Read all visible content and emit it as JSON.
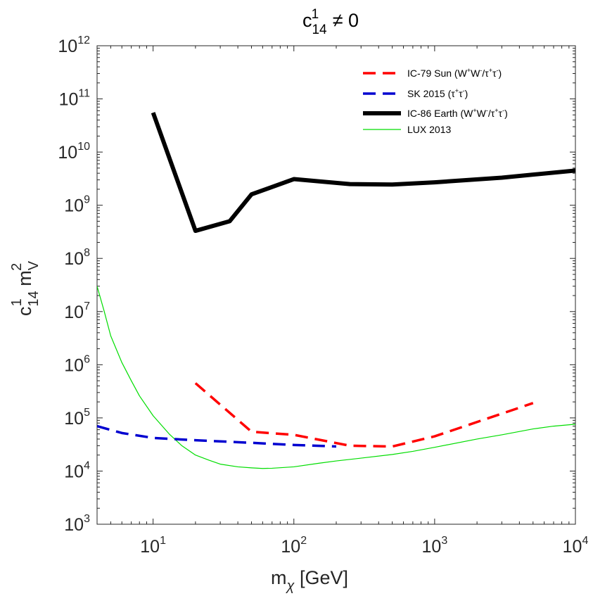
{
  "chart_data": {
    "type": "line",
    "title": {
      "base": "c",
      "sub": "14",
      "sup": "1",
      "rest": " ≠ 0"
    },
    "xlabel": {
      "base": "m",
      "sub": "χ",
      "rest": " [GeV]"
    },
    "ylabel": {
      "base": "c",
      "sub1": "14",
      "sup1": "1",
      "base2": " m",
      "sub2": "V",
      "sup2": "2"
    },
    "xscale": "log",
    "yscale": "log",
    "xlim": [
      4,
      10000
    ],
    "ylim": [
      1000,
      1000000000000
    ],
    "xticks": [
      {
        "base": "10",
        "exp": "1",
        "value": 10
      },
      {
        "base": "10",
        "exp": "2",
        "value": 100
      },
      {
        "base": "10",
        "exp": "3",
        "value": 1000
      },
      {
        "base": "10",
        "exp": "4",
        "value": 10000
      }
    ],
    "yticks": [
      {
        "base": "10",
        "exp": "3",
        "value": 1000
      },
      {
        "base": "10",
        "exp": "4",
        "value": 10000
      },
      {
        "base": "10",
        "exp": "5",
        "value": 100000
      },
      {
        "base": "10",
        "exp": "6",
        "value": 1000000
      },
      {
        "base": "10",
        "exp": "7",
        "value": 10000000
      },
      {
        "base": "10",
        "exp": "8",
        "value": 100000000
      },
      {
        "base": "10",
        "exp": "9",
        "value": 1000000000
      },
      {
        "base": "10",
        "exp": "10",
        "value": 10000000000
      },
      {
        "base": "10",
        "exp": "11",
        "value": 100000000000
      },
      {
        "base": "10",
        "exp": "12",
        "value": 1000000000000
      }
    ],
    "legend_position": "top-right",
    "series": [
      {
        "id": "ic79-sun",
        "legend": "IC-79 Sun (W+W-/τ+τ-)",
        "legend_parts": [
          {
            "t": "IC-79 Sun (W"
          },
          {
            "t": "+",
            "sup": true
          },
          {
            "t": "W"
          },
          {
            "t": "-",
            "sup": true
          },
          {
            "t": "/τ"
          },
          {
            "t": "+",
            "sup": true
          },
          {
            "t": "τ"
          },
          {
            "t": "-",
            "sup": true
          },
          {
            "t": ")"
          }
        ],
        "color": "#ff0000",
        "style": "dashed",
        "width": 3.5,
        "x": [
          20,
          50,
          100,
          250,
          500,
          1000,
          5000
        ],
        "y": [
          450000,
          55000,
          48000,
          30000,
          29000,
          45000,
          190000
        ]
      },
      {
        "id": "sk2015",
        "legend": "SK 2015 (τ+τ-)",
        "legend_parts": [
          {
            "t": "SK 2015 (τ"
          },
          {
            "t": "+",
            "sup": true
          },
          {
            "t": "τ"
          },
          {
            "t": "-",
            "sup": true
          },
          {
            "t": ")"
          }
        ],
        "color": "#0000d0",
        "style": "dashed",
        "width": 3.5,
        "x": [
          4,
          6,
          10,
          20,
          50,
          100,
          200
        ],
        "y": [
          70000,
          52000,
          42000,
          38000,
          34000,
          31000,
          29000
        ]
      },
      {
        "id": "ic86-earth",
        "legend": "IC-86 Earth (W+W-/τ+τ-)",
        "legend_parts": [
          {
            "t": "IC-86 Earth (W"
          },
          {
            "t": "+",
            "sup": true
          },
          {
            "t": "W"
          },
          {
            "t": "-",
            "sup": true
          },
          {
            "t": "/τ"
          },
          {
            "t": "+",
            "sup": true
          },
          {
            "t": "τ"
          },
          {
            "t": "-",
            "sup": true
          },
          {
            "t": ")"
          }
        ],
        "color": "#000000",
        "style": "solid",
        "width": 6,
        "x": [
          10,
          20,
          35,
          50,
          100,
          250,
          500,
          1000,
          3000,
          10000
        ],
        "y": [
          55000000000,
          330000000,
          500000000,
          1600000000,
          3100000000,
          2500000000,
          2450000000,
          2700000000,
          3300000000,
          4500000000
        ]
      },
      {
        "id": "lux2013",
        "legend": "LUX 2013",
        "legend_parts": [
          {
            "t": "LUX 2013"
          }
        ],
        "color": "#00dd00",
        "style": "solid",
        "width": 1.2,
        "x": [
          4,
          4.5,
          5,
          6,
          7,
          8,
          10,
          13,
          16,
          20,
          25,
          30,
          40,
          50,
          60,
          70,
          100,
          150,
          200,
          300,
          500,
          700,
          1000,
          2000,
          3000,
          5000,
          7000,
          10000
        ],
        "y": [
          30000000,
          10000000,
          3500000,
          1100000,
          500000,
          260000,
          110000,
          50000,
          30000,
          20000,
          16000,
          13500,
          12000,
          11500,
          11200,
          11300,
          12000,
          14000,
          15500,
          17500,
          20500,
          23500,
          28000,
          40000,
          48000,
          62000,
          70000,
          76000
        ]
      }
    ]
  }
}
